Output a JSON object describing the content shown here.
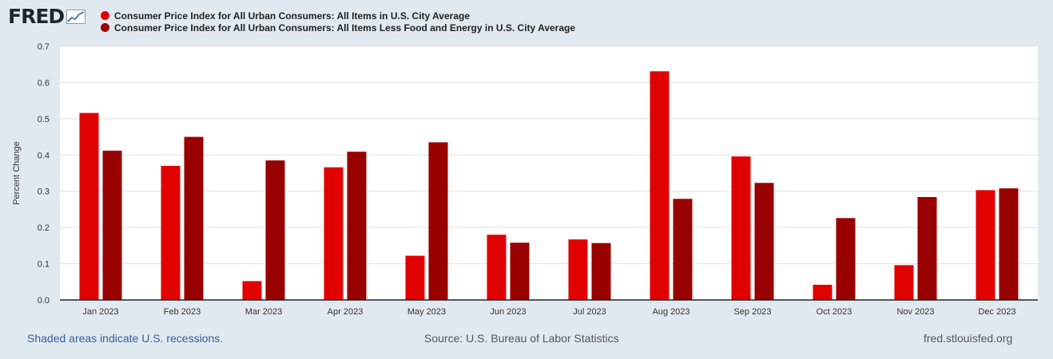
{
  "brand": {
    "logo_text": "FRED"
  },
  "colors": {
    "series1": "#e10000",
    "series2": "#990000",
    "plot_bg": "#ffffff",
    "page_bg": "#e1e9f0"
  },
  "chart_data": {
    "type": "bar",
    "title": "",
    "xlabel": "",
    "ylabel": "Percent Change",
    "ylim": [
      0,
      0.7
    ],
    "yticks": [
      "0.0",
      "0.1",
      "0.2",
      "0.3",
      "0.4",
      "0.5",
      "0.6",
      "0.7"
    ],
    "grid": true,
    "legend_position": "top-left",
    "categories": [
      "Jan 2023",
      "Feb 2023",
      "Mar 2023",
      "Apr 2023",
      "May 2023",
      "Jun 2023",
      "Jul 2023",
      "Aug 2023",
      "Sep 2023",
      "Oct 2023",
      "Nov 2023",
      "Dec 2023"
    ],
    "series": [
      {
        "name": "Consumer Price Index for All Urban Consumers: All Items in U.S. City Average",
        "color": "#e10000",
        "values": [
          0.516,
          0.37,
          0.052,
          0.366,
          0.122,
          0.18,
          0.167,
          0.631,
          0.396,
          0.042,
          0.096,
          0.303
        ]
      },
      {
        "name": "Consumer Price Index for All Urban Consumers: All Items Less Food and Energy in U.S. City Average",
        "color": "#990000",
        "values": [
          0.412,
          0.45,
          0.385,
          0.409,
          0.435,
          0.158,
          0.157,
          0.279,
          0.323,
          0.226,
          0.284,
          0.308
        ]
      }
    ]
  },
  "footer": {
    "note": "Shaded areas indicate U.S. recessions.",
    "source": "Source: U.S. Bureau of Labor Statistics",
    "site": "fred.stlouisfed.org"
  }
}
